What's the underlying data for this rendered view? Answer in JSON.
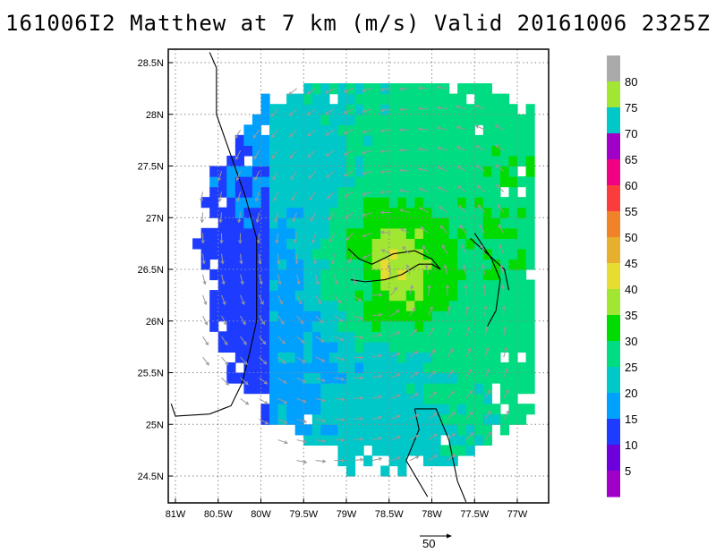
{
  "title": "161006I2 Matthew at 7 km (m/s) Valid 20161006 2325Z",
  "reference_vector": {
    "label": "50",
    "value": 50
  },
  "chart_data": {
    "type": "heatmap",
    "title": "161006I2 Matthew at 7 km (m/s) Valid 20161006 2325Z",
    "quantity": "wind speed (m/s) with wind vectors at 7 km",
    "grid": true,
    "x_ticks": [
      "81W",
      "80.5W",
      "80W",
      "79.5W",
      "79W",
      "78.5W",
      "78W",
      "77.5W",
      "77W"
    ],
    "y_ticks": [
      "28.5N",
      "28N",
      "27.5N",
      "27N",
      "26.5N",
      "26N",
      "25.5N",
      "25N",
      "24.5N"
    ],
    "xlim": [
      -81.1,
      -76.8
    ],
    "ylim": [
      24.25,
      28.6
    ],
    "colorbar": {
      "labels": [
        "5",
        "10",
        "15",
        "20",
        "25",
        "30",
        "35",
        "40",
        "45",
        "50",
        "55",
        "60",
        "65",
        "70",
        "75",
        "80"
      ],
      "colors": [
        "#a000c8",
        "#6e00dc",
        "#1e3cff",
        "#00a0ff",
        "#00c8c8",
        "#00dc82",
        "#00dc00",
        "#a0e632",
        "#e6dc32",
        "#e6af2d",
        "#f08228",
        "#fa3c3c",
        "#f00082",
        "#a000c8",
        "#00c8c8",
        "#a0e632",
        "#aaaaaa"
      ]
    },
    "center": {
      "lon": -78.65,
      "lat": 26.45
    },
    "max_wind_band": "40-45 m/s near 78.6W 26.5N",
    "coast": [
      [
        [
          -80.6,
          28.6
        ],
        [
          -80.52,
          28.45
        ],
        [
          -80.52,
          28.0
        ],
        [
          -80.35,
          27.6
        ],
        [
          -80.18,
          27.2
        ],
        [
          -80.05,
          26.8
        ],
        [
          -80.05,
          26.0
        ],
        [
          -80.13,
          25.7
        ],
        [
          -80.22,
          25.4
        ],
        [
          -80.35,
          25.18
        ],
        [
          -80.6,
          25.1
        ],
        [
          -81.0,
          25.08
        ],
        [
          -81.05,
          25.2
        ]
      ],
      [
        [
          -78.98,
          26.7
        ],
        [
          -78.85,
          26.6
        ],
        [
          -78.7,
          26.55
        ],
        [
          -78.45,
          26.65
        ],
        [
          -78.2,
          26.68
        ],
        [
          -78.0,
          26.6
        ],
        [
          -77.9,
          26.5
        ],
        [
          -78.0,
          26.55
        ],
        [
          -78.15,
          26.55
        ],
        [
          -78.35,
          26.45
        ],
        [
          -78.55,
          26.4
        ],
        [
          -78.78,
          26.38
        ],
        [
          -78.95,
          26.4
        ]
      ],
      [
        [
          -77.5,
          26.85
        ],
        [
          -77.3,
          26.6
        ],
        [
          -77.2,
          26.4
        ],
        [
          -77.25,
          26.1
        ],
        [
          -77.35,
          25.95
        ]
      ],
      [
        [
          -77.55,
          26.8
        ],
        [
          -77.35,
          26.65
        ],
        [
          -77.15,
          26.5
        ],
        [
          -77.1,
          26.3
        ]
      ],
      [
        [
          -78.2,
          25.15
        ],
        [
          -77.95,
          25.15
        ],
        [
          -77.8,
          24.85
        ],
        [
          -77.7,
          24.45
        ],
        [
          -77.6,
          24.25
        ]
      ],
      [
        [
          -78.2,
          25.15
        ],
        [
          -78.15,
          24.95
        ],
        [
          -78.3,
          24.65
        ],
        [
          -78.05,
          24.3
        ]
      ]
    ]
  }
}
